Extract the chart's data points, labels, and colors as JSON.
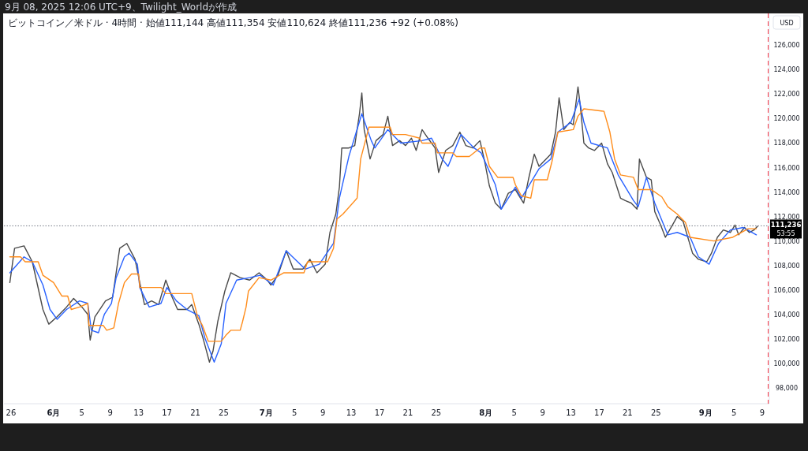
{
  "chart_data": {
    "type": "line",
    "title": "ビットコイン／米ドル · 4時間 · 始値111,144 高値111,354 安値110,624 終値111,236 +92 (+0.08%)",
    "ylabel": "USD",
    "annotations": [
      "9月 08, 2025 12:06 UTC+9、Twilight_Worldが作成",
      "53:55"
    ],
    "xlim": [
      "2025-05-25T00:00",
      "2025-09-10T00:00"
    ],
    "xticks": [
      {
        "value": "2025-05-26",
        "label": "26"
      },
      {
        "value": "2025-06-01",
        "label": "6月"
      },
      {
        "value": "2025-06-05",
        "label": "5"
      },
      {
        "value": "2025-06-09",
        "label": "9"
      },
      {
        "value": "2025-06-13",
        "label": "13"
      },
      {
        "value": "2025-06-17",
        "label": "17"
      },
      {
        "value": "2025-06-21",
        "label": "21"
      },
      {
        "value": "2025-06-25",
        "label": "25"
      },
      {
        "value": "2025-07-01",
        "label": "7月"
      },
      {
        "value": "2025-07-05",
        "label": "5"
      },
      {
        "value": "2025-07-09",
        "label": "9"
      },
      {
        "value": "2025-07-13",
        "label": "13"
      },
      {
        "value": "2025-07-17",
        "label": "17"
      },
      {
        "value": "2025-07-21",
        "label": "21"
      },
      {
        "value": "2025-07-25",
        "label": "25"
      },
      {
        "value": "2025-08-01",
        "label": "8月"
      },
      {
        "value": "2025-08-05",
        "label": "5"
      },
      {
        "value": "2025-08-09",
        "label": "9"
      },
      {
        "value": "2025-08-13",
        "label": "13"
      },
      {
        "value": "2025-08-17",
        "label": "17"
      },
      {
        "value": "2025-08-21",
        "label": "21"
      },
      {
        "value": "2025-08-25",
        "label": "25"
      },
      {
        "value": "2025-09-01",
        "label": "9月"
      },
      {
        "value": "2025-09-05",
        "label": "5"
      },
      {
        "value": "2025-09-09",
        "label": "9"
      }
    ],
    "ylim": [
      96700,
      128600
    ],
    "yticks": [
      {
        "value": 98000,
        "label": "98,000"
      },
      {
        "value": 100000,
        "label": "100,000"
      },
      {
        "value": 102000,
        "label": "102,000"
      },
      {
        "value": 104000,
        "label": "104,000"
      },
      {
        "value": 106000,
        "label": "106,000"
      },
      {
        "value": 108000,
        "label": "108,000"
      },
      {
        "value": 110000,
        "label": "110,000"
      },
      {
        "value": 112000,
        "label": "112,000"
      },
      {
        "value": 114000,
        "label": "114,000"
      },
      {
        "value": 116000,
        "label": "116,000"
      },
      {
        "value": 118000,
        "label": "118,000"
      },
      {
        "value": 120000,
        "label": "120,000"
      },
      {
        "value": 122000,
        "label": "122,000"
      },
      {
        "value": 124000,
        "label": "124,000"
      },
      {
        "value": 126000,
        "label": "126,000"
      }
    ],
    "ref_lines": [
      {
        "axis": "y",
        "value": 111236,
        "label": "111,236",
        "color": "#787b86",
        "line_style": "dotted"
      },
      {
        "axis": "x",
        "value": "2025-09-09T20:00",
        "color": "#f23645",
        "line_style": "dashed"
      }
    ],
    "series": [
      {
        "color": "#4a4a4a",
        "x": [
          "2025-05-25T20:00",
          "2025-05-26T12:00",
          "2025-05-27T20:00",
          "2025-05-29T00:00",
          "2025-05-30T12:00",
          "2025-05-31T08:00",
          "2025-06-01T12:00",
          "2025-06-02T20:00",
          "2025-06-03T20:00",
          "2025-06-05T00:00",
          "2025-06-05T20:00",
          "2025-06-06T04:00",
          "2025-06-06T20:00",
          "2025-06-08T08:00",
          "2025-06-09T08:00",
          "2025-06-09T20:00",
          "2025-06-10T08:00",
          "2025-06-11T08:00",
          "2025-06-12T12:00",
          "2025-06-13T04:00",
          "2025-06-13T20:00",
          "2025-06-14T20:00",
          "2025-06-15T20:00",
          "2025-06-16T20:00",
          "2025-06-17T16:00",
          "2025-06-18T12:00",
          "2025-06-19T20:00",
          "2025-06-20T12:00",
          "2025-06-21T12:00",
          "2025-06-22T04:00",
          "2025-06-23T00:00",
          "2025-06-23T12:00",
          "2025-06-24T04:00",
          "2025-06-25T04:00",
          "2025-06-26T00:00",
          "2025-06-27T08:00",
          "2025-06-28T16:00",
          "2025-06-30T00:00",
          "2025-07-01T04:00",
          "2025-07-01T16:00",
          "2025-07-02T16:00",
          "2025-07-03T20:00",
          "2025-07-04T20:00",
          "2025-07-06T04:00",
          "2025-07-07T04:00",
          "2025-07-08T04:00",
          "2025-07-09T08:00",
          "2025-07-10T00:00",
          "2025-07-10T20:00",
          "2025-07-11T08:00",
          "2025-07-11T16:00",
          "2025-07-12T16:00",
          "2025-07-13T12:00",
          "2025-07-14T04:00",
          "2025-07-14T12:00",
          "2025-07-14T20:00",
          "2025-07-15T16:00",
          "2025-07-16T12:00",
          "2025-07-17T12:00",
          "2025-07-18T04:00",
          "2025-07-18T20:00",
          "2025-07-19T20:00",
          "2025-07-20T16:00",
          "2025-07-21T12:00",
          "2025-07-22T04:00",
          "2025-07-23T00:00",
          "2025-07-23T20:00",
          "2025-07-24T20:00",
          "2025-07-25T08:00",
          "2025-07-26T08:00",
          "2025-07-27T08:00",
          "2025-07-28T08:00",
          "2025-07-29T04:00",
          "2025-07-30T04:00",
          "2025-07-31T04:00",
          "2025-07-31T20:00",
          "2025-08-01T12:00",
          "2025-08-02T08:00",
          "2025-08-03T04:00",
          "2025-08-04T04:00",
          "2025-08-05T04:00",
          "2025-08-05T16:00",
          "2025-08-06T08:00",
          "2025-08-07T00:00",
          "2025-08-07T20:00",
          "2025-08-08T12:00",
          "2025-08-09T12:00",
          "2025-08-10T04:00",
          "2025-08-10T20:00",
          "2025-08-11T08:00",
          "2025-08-12T00:00",
          "2025-08-12T20:00",
          "2025-08-13T08:00",
          "2025-08-14T00:00",
          "2025-08-14T08:00",
          "2025-08-14T20:00",
          "2025-08-15T12:00",
          "2025-08-16T08:00",
          "2025-08-17T08:00",
          "2025-08-18T04:00",
          "2025-08-18T20:00",
          "2025-08-20T00:00",
          "2025-08-20T16:00",
          "2025-08-21T12:00",
          "2025-08-22T08:00",
          "2025-08-22T16:00",
          "2025-08-23T16:00",
          "2025-08-24T08:00",
          "2025-08-24T20:00",
          "2025-08-25T16:00",
          "2025-08-26T08:00",
          "2025-08-27T08:00",
          "2025-08-28T00:00",
          "2025-08-28T20:00",
          "2025-08-29T12:00",
          "2025-08-30T04:00",
          "2025-08-31T00:00",
          "2025-09-01T04:00",
          "2025-09-01T20:00",
          "2025-09-02T16:00",
          "2025-09-03T12:00",
          "2025-09-04T12:00",
          "2025-09-05T04:00",
          "2025-09-05T16:00",
          "2025-09-06T12:00",
          "2025-09-07T04:00",
          "2025-09-07T20:00",
          "2025-09-08T08:00"
        ],
        "values": [
          106600,
          109400,
          109600,
          108300,
          104400,
          103200,
          103800,
          104600,
          105300,
          104600,
          104000,
          101900,
          103800,
          105100,
          105400,
          107400,
          109400,
          109800,
          108500,
          106600,
          104800,
          105100,
          104800,
          106800,
          105500,
          104400,
          104400,
          104800,
          103200,
          101900,
          100100,
          101000,
          103400,
          105900,
          107400,
          107000,
          106800,
          107400,
          106800,
          106400,
          107200,
          109200,
          107700,
          107700,
          108500,
          107400,
          108100,
          110700,
          112200,
          114400,
          117600,
          117600,
          117800,
          120400,
          122100,
          119100,
          116700,
          118200,
          118700,
          120200,
          117800,
          118200,
          117800,
          118400,
          117400,
          119100,
          118400,
          117600,
          115600,
          117400,
          117800,
          118900,
          117800,
          117600,
          118200,
          116500,
          114500,
          113100,
          112600,
          113900,
          114200,
          113700,
          113100,
          115000,
          117100,
          116100,
          116700,
          117100,
          118900,
          121700,
          119100,
          119700,
          119500,
          122600,
          121000,
          118000,
          117600,
          117400,
          118000,
          116300,
          115600,
          113500,
          113300,
          113100,
          112600,
          116700,
          115200,
          115000,
          112400,
          111300,
          110300,
          111300,
          112000,
          111600,
          110300,
          109000,
          108500,
          108300,
          109000,
          110300,
          110900,
          110700,
          111300,
          110500,
          111100,
          110700,
          110900,
          111200
        ]
      },
      {
        "color": "#2962ff",
        "x": [
          "2025-05-25T20:00",
          "2025-05-27T20:00",
          "2025-05-29T00:00",
          "2025-05-30T12:00",
          "2025-05-31T12:00",
          "2025-06-01T12:00",
          "2025-06-02T20:00",
          "2025-06-04T16:00",
          "2025-06-05T20:00",
          "2025-06-06T08:00",
          "2025-06-07T08:00",
          "2025-06-08T04:00",
          "2025-06-09T04:00",
          "2025-06-09T20:00",
          "2025-06-11T00:00",
          "2025-06-11T16:00",
          "2025-06-12T20:00",
          "2025-06-13T04:00",
          "2025-06-14T12:00",
          "2025-06-16T04:00",
          "2025-06-17T00:00",
          "2025-06-18T08:00",
          "2025-06-19T20:00",
          "2025-06-21T12:00",
          "2025-06-22T08:00",
          "2025-06-23T16:00",
          "2025-06-24T16:00",
          "2025-06-25T08:00",
          "2025-06-26T20:00",
          "2025-06-28T16:00",
          "2025-06-30T04:00",
          "2025-07-02T00:00",
          "2025-07-03T20:00",
          "2025-07-06T12:00",
          "2025-07-08T12:00",
          "2025-07-10T12:00",
          "2025-07-11T08:00",
          "2025-07-12T16:00",
          "2025-07-14T12:00",
          "2025-07-15T20:00",
          "2025-07-16T08:00",
          "2025-07-18T04:00",
          "2025-07-20T00:00",
          "2025-07-23T00:00",
          "2025-07-24T08:00",
          "2025-07-25T20:00",
          "2025-07-26T16:00",
          "2025-07-28T12:00",
          "2025-07-30T08:00",
          "2025-07-31T08:00",
          "2025-08-02T08:00",
          "2025-08-03T04:00",
          "2025-08-05T04:00",
          "2025-08-06T00:00",
          "2025-08-08T12:00",
          "2025-08-10T04:00",
          "2025-08-11T04:00",
          "2025-08-13T00:00",
          "2025-08-14T04:00",
          "2025-08-14T20:00",
          "2025-08-15T20:00",
          "2025-08-18T04:00",
          "2025-08-19T16:00",
          "2025-08-21T20:00",
          "2025-08-22T12:00",
          "2025-08-23T16:00",
          "2025-08-24T20:00",
          "2025-08-26T16:00",
          "2025-08-28T00:00",
          "2025-08-29T20:00",
          "2025-08-31T00:00",
          "2025-09-01T12:00",
          "2025-09-02T20:00",
          "2025-09-04T12:00",
          "2025-09-06T08:00",
          "2025-09-08T04:00"
        ],
        "values": [
          107400,
          108700,
          108300,
          106400,
          104400,
          103600,
          104400,
          105100,
          104900,
          102700,
          102500,
          104000,
          104900,
          107000,
          108700,
          109000,
          108100,
          106200,
          104600,
          104900,
          106200,
          105100,
          104400,
          103900,
          102100,
          100100,
          101600,
          104900,
          106800,
          107000,
          107200,
          106400,
          109200,
          107700,
          108100,
          109800,
          113500,
          116900,
          120400,
          118200,
          117600,
          119100,
          118000,
          118200,
          118400,
          116700,
          116100,
          118700,
          117600,
          117200,
          114600,
          112600,
          114400,
          113500,
          115900,
          116700,
          118900,
          119700,
          121600,
          119700,
          118000,
          117600,
          115400,
          113300,
          112800,
          115200,
          113100,
          110500,
          110700,
          110300,
          108700,
          108100,
          109800,
          110900,
          111100,
          110500
        ]
      },
      {
        "color": "#ff8c1a",
        "x": [
          "2025-05-25T20:00",
          "2025-05-27T08:00",
          "2025-05-28T00:00",
          "2025-05-29T20:00",
          "2025-05-30T12:00",
          "2025-06-01T00:00",
          "2025-06-02T04:00",
          "2025-06-03T00:00",
          "2025-06-03T12:00",
          "2025-06-04T16:00",
          "2025-06-05T20:00",
          "2025-06-06T00:00",
          "2025-06-08T00:00",
          "2025-06-08T12:00",
          "2025-06-09T12:00",
          "2025-06-10T04:00",
          "2025-06-11T00:00",
          "2025-06-12T00:00",
          "2025-06-13T00:00",
          "2025-06-13T04:00",
          "2025-06-16T04:00",
          "2025-06-16T20:00",
          "2025-06-20T12:00",
          "2025-06-21T08:00",
          "2025-06-22T00:00",
          "2025-06-22T20:00",
          "2025-06-24T16:00",
          "2025-06-25T08:00",
          "2025-06-26T00:00",
          "2025-06-27T08:00",
          "2025-06-27T16:00",
          "2025-06-28T04:00",
          "2025-06-28T12:00",
          "2025-06-30T00:00",
          "2025-07-01T16:00",
          "2025-07-03T12:00",
          "2025-07-06T08:00",
          "2025-07-06T20:00",
          "2025-07-09T16:00",
          "2025-07-10T12:00",
          "2025-07-11T00:00",
          "2025-07-11T20:00",
          "2025-07-13T20:00",
          "2025-07-14T08:00",
          "2025-07-15T12:00",
          "2025-07-18T12:00",
          "2025-07-18T20:00",
          "2025-07-20T16:00",
          "2025-07-22T16:00",
          "2025-07-23T00:00",
          "2025-07-24T20:00",
          "2025-07-25T04:00",
          "2025-07-27T08:00",
          "2025-07-27T20:00",
          "2025-07-29T16:00",
          "2025-07-31T04:00",
          "2025-07-31T20:00",
          "2025-08-01T12:00",
          "2025-08-02T16:00",
          "2025-08-04T20:00",
          "2025-08-05T04:00",
          "2025-08-06T00:00",
          "2025-08-07T08:00",
          "2025-08-07T20:00",
          "2025-08-09T16:00",
          "2025-08-10T08:00",
          "2025-08-11T04:00",
          "2025-08-13T08:00",
          "2025-08-14T00:00",
          "2025-08-14T20:00",
          "2025-08-17T16:00",
          "2025-08-18T12:00",
          "2025-08-19T04:00",
          "2025-08-20T00:00",
          "2025-08-21T20:00",
          "2025-08-22T12:00",
          "2025-08-24T08:00",
          "2025-08-25T20:00",
          "2025-08-26T16:00",
          "2025-08-28T00:00",
          "2025-08-29T04:00",
          "2025-08-29T20:00",
          "2025-09-02T04:00",
          "2025-09-04T20:00",
          "2025-09-07T00:00",
          "2025-09-08T04:00"
        ],
        "values": [
          108700,
          108700,
          108300,
          108300,
          107200,
          106600,
          105500,
          105500,
          104400,
          104600,
          104900,
          103100,
          103100,
          102700,
          102900,
          104900,
          106600,
          107300,
          107300,
          106200,
          106200,
          105700,
          105700,
          103800,
          103100,
          101800,
          101800,
          102300,
          102700,
          102700,
          103400,
          104600,
          105900,
          107000,
          106800,
          107400,
          107400,
          108300,
          108300,
          109400,
          111800,
          112200,
          113500,
          116700,
          119300,
          119300,
          118700,
          118700,
          118400,
          118000,
          118000,
          117200,
          117200,
          116900,
          116900,
          117600,
          117600,
          116100,
          115200,
          115200,
          114600,
          113700,
          113500,
          115000,
          115000,
          116500,
          118900,
          119100,
          120200,
          120800,
          120600,
          118900,
          116700,
          115400,
          115200,
          114200,
          114200,
          113600,
          112800,
          112200,
          111500,
          110300,
          110000,
          110300,
          111000,
          111000
        ]
      }
    ]
  }
}
